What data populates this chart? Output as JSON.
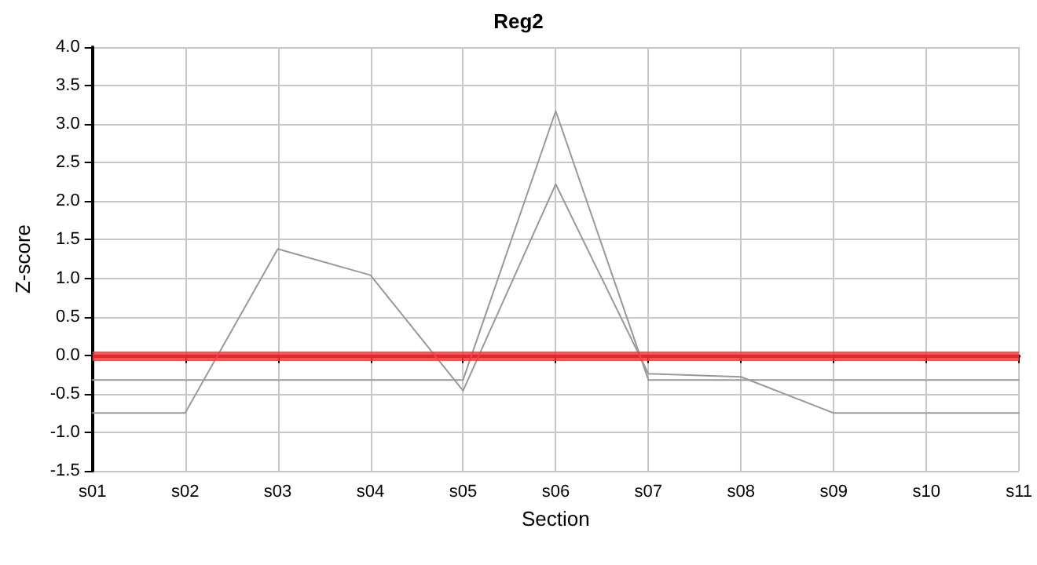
{
  "chart_data": {
    "type": "line",
    "title": "Reg2",
    "xlabel": "Section",
    "ylabel": "Z-score",
    "categories": [
      "s01",
      "s02",
      "s03",
      "s04",
      "s05",
      "s06",
      "s07",
      "s08",
      "s09",
      "s10",
      "s11"
    ],
    "series": [
      {
        "color": "#999999",
        "values": [
          -0.75,
          -0.75,
          1.38,
          1.04,
          -0.46,
          2.22,
          -0.24,
          -0.28,
          -0.75,
          -0.75,
          -0.75
        ]
      },
      {
        "color": "#999999",
        "values": [
          -0.32,
          -0.32,
          -0.32,
          -0.32,
          -0.32,
          3.17,
          -0.32,
          -0.32,
          -0.32,
          -0.32,
          -0.32
        ]
      }
    ],
    "ylim": [
      -1.5,
      4.0
    ],
    "yticks": [
      {
        "value": -1.5,
        "label": "-1.5"
      },
      {
        "value": -1,
        "label": "-1.0"
      },
      {
        "value": -0.5,
        "label": "-0.5"
      },
      {
        "value": 0,
        "label": "0.0"
      },
      {
        "value": 0.5,
        "label": "0.5"
      },
      {
        "value": 1,
        "label": "1.0"
      },
      {
        "value": 1.5,
        "label": "1.5"
      },
      {
        "value": 2,
        "label": "2.0"
      },
      {
        "value": 2.5,
        "label": "2.5"
      },
      {
        "value": 3,
        "label": "3.0"
      },
      {
        "value": 3.5,
        "label": "3.5"
      },
      {
        "value": 4,
        "label": "4.0"
      }
    ],
    "ref_lines": [
      {
        "axis": "y",
        "value": 0,
        "color": "#ff3333"
      }
    ],
    "grid": true,
    "marker": "none",
    "line_style": "solid"
  }
}
